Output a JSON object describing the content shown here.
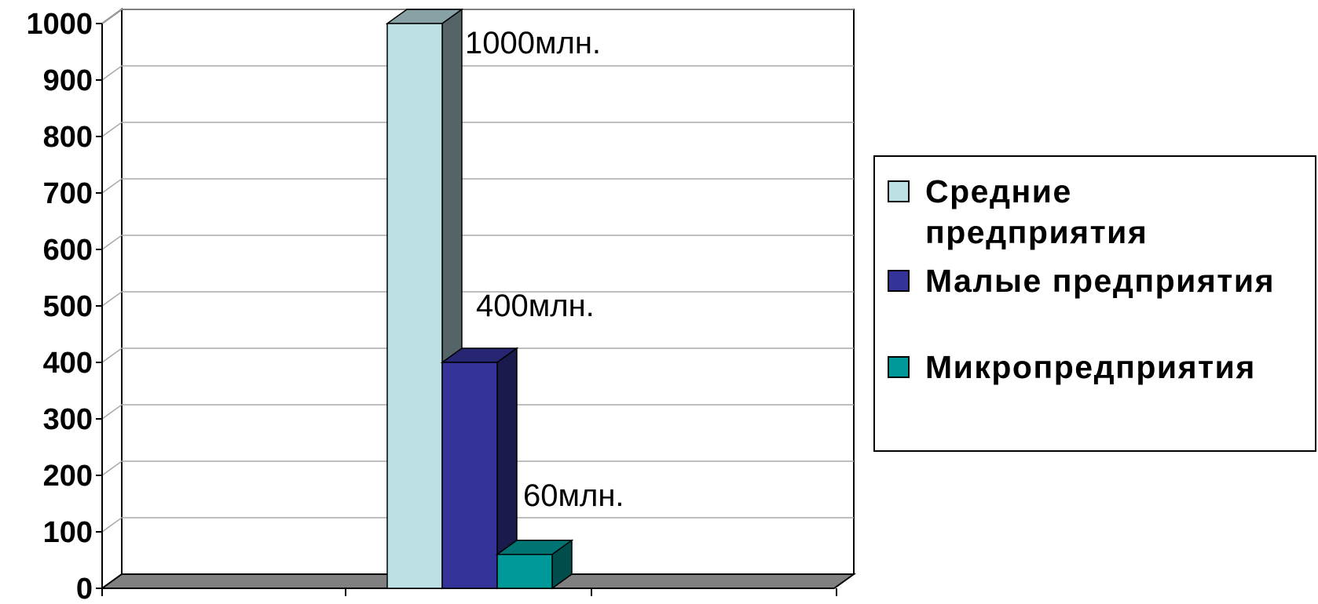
{
  "chart_data": {
    "type": "bar",
    "categories": [
      ""
    ],
    "series": [
      {
        "name": "Средние предприятия",
        "values": [
          1000
        ],
        "color": "#bde0e4",
        "label": "1000млн."
      },
      {
        "name": "Малые предприятия",
        "values": [
          400
        ],
        "color": "#333399",
        "label": "400млн."
      },
      {
        "name": "Микропредприятия",
        "values": [
          60
        ],
        "color": "#009999",
        "label": "60млн."
      }
    ],
    "yticks": [
      "0",
      "100",
      "200",
      "300",
      "400",
      "500",
      "600",
      "700",
      "800",
      "900",
      "1000"
    ],
    "ylim": [
      0,
      1000
    ],
    "title": "",
    "xlabel": "",
    "ylabel": "",
    "grid": true,
    "three_d": true,
    "legend_position": "right"
  },
  "legend": {
    "items": [
      {
        "line1": "Средние",
        "line2": "предприятия"
      },
      {
        "line1": "Малые предприятия",
        "line2": ""
      },
      {
        "line1": "Микропредприятия",
        "line2": ""
      }
    ]
  }
}
